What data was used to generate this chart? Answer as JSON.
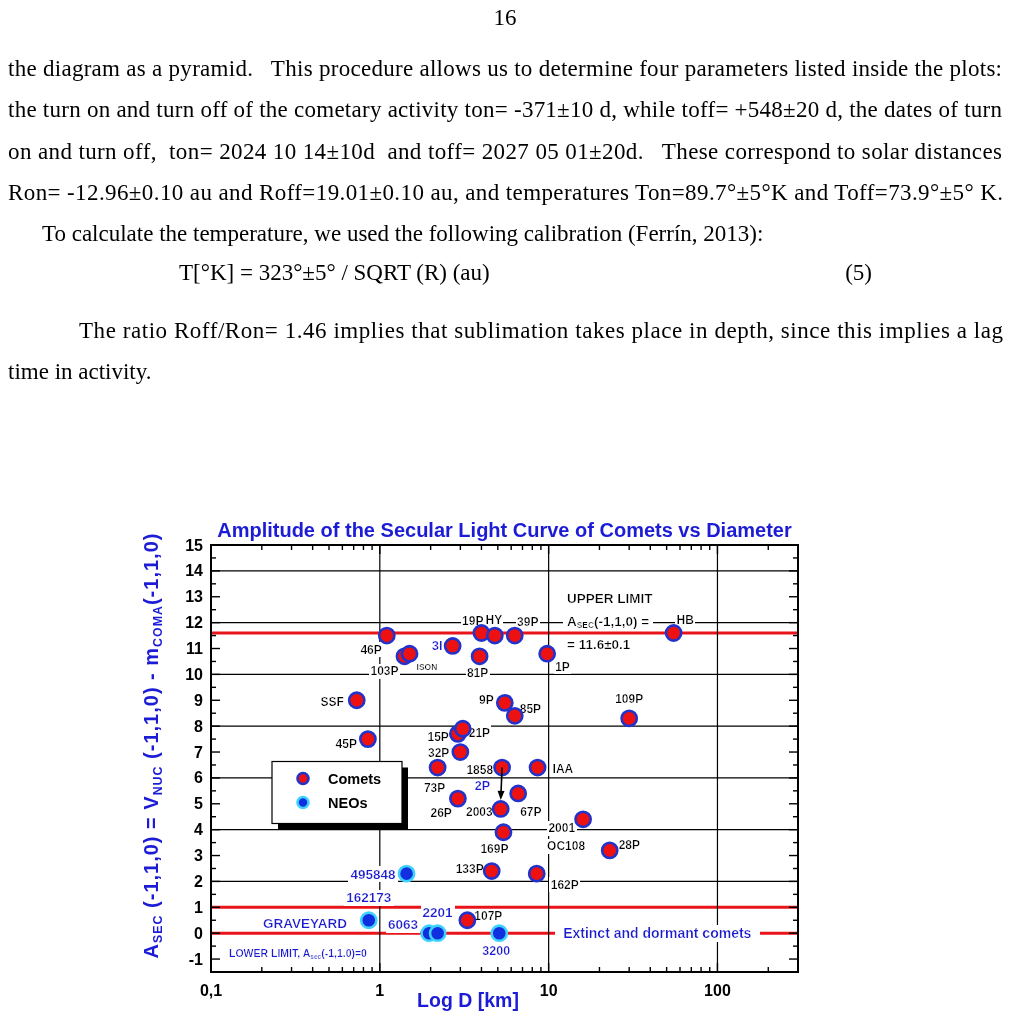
{
  "chart_data": {
    "type": "scatter",
    "title": "Amplitude of the Secular Light Curve of Comets vs Diameter",
    "xlabel": "Log D [km]",
    "ylabel": "A$_{SEC}$ (-1,1,0) = V$_{NUC}$ (-1,1,0) - m$_{COMA}$(-1,1,0)",
    "log": "x",
    "xlim": [
      0.1,
      300
    ],
    "ylim": [
      -1.5,
      15
    ],
    "xticks": [
      {
        "value": 0.1,
        "label": "0,1"
      },
      {
        "value": 0.2,
        "label": null
      },
      {
        "value": 0.3,
        "label": null
      },
      {
        "value": 0.4,
        "label": null
      },
      {
        "value": 0.5,
        "label": null
      },
      {
        "value": 0.6,
        "label": null
      },
      {
        "value": 0.7,
        "label": null
      },
      {
        "value": 0.8,
        "label": null
      },
      {
        "value": 0.9,
        "label": null
      },
      1,
      {
        "value": 2,
        "label": null
      },
      {
        "value": 3,
        "label": null
      },
      {
        "value": 4,
        "label": null
      },
      {
        "value": 5,
        "label": null
      },
      {
        "value": 6,
        "label": null
      },
      {
        "value": 7,
        "label": null
      },
      {
        "value": 8,
        "label": null
      },
      {
        "value": 9,
        "label": null
      },
      10,
      {
        "value": 20,
        "label": null
      },
      {
        "value": 30,
        "label": null
      },
      {
        "value": 40,
        "label": null
      },
      {
        "value": 50,
        "label": null
      },
      {
        "value": 60,
        "label": null
      },
      {
        "value": 70,
        "label": null
      },
      {
        "value": 80,
        "label": null
      },
      {
        "value": 90,
        "label": null
      },
      100,
      {
        "value": 200,
        "label": null
      }
    ],
    "yticks": [
      -1,
      {
        "value": -0.5,
        "label": null
      },
      0,
      {
        "value": 0.5,
        "label": null
      },
      1,
      {
        "value": 1.5,
        "label": null
      },
      2,
      {
        "value": 2.5,
        "label": null
      },
      3,
      {
        "value": 3.5,
        "label": null
      },
      4,
      {
        "value": 4.5,
        "label": null
      },
      5,
      {
        "value": 5.5,
        "label": null
      },
      6,
      {
        "value": 6.5,
        "label": null
      },
      7,
      {
        "value": 7.5,
        "label": null
      },
      8,
      {
        "value": 8.5,
        "label": null
      },
      9,
      {
        "value": 9.5,
        "label": null
      },
      10,
      {
        "value": 10.5,
        "label": null
      },
      11,
      {
        "value": 11.5,
        "label": null
      },
      12,
      {
        "value": 12.5,
        "label": null
      },
      13,
      {
        "value": 13.5,
        "label": null
      },
      14,
      {
        "value": 14.5,
        "label": null
      },
      15
    ],
    "marker": "circle",
    "legend": "left",
    "series": [
      {
        "name": "Comets",
        "color": "#ee1111",
        "x": [
          1.1,
          1.4,
          1.5,
          2.7,
          0.73,
          0.85,
          2.9,
          3.1,
          3.0,
          2.2,
          2.9,
          4.0,
          4.8,
          6.3,
          3.9,
          9.8,
          55,
          5.5,
          6.3,
          30,
          5.3,
          8.6,
          6.6,
          5.2,
          5.4,
          16,
          23,
          4.6,
          8.5,
          3.3
        ],
        "values": [
          11.5,
          10.7,
          10.8,
          11.1,
          9.0,
          7.5,
          7.7,
          7.9,
          7.0,
          6.4,
          5.2,
          11.6,
          11.5,
          11.5,
          10.7,
          10.8,
          11.6,
          8.9,
          8.4,
          8.3,
          6.4,
          6.4,
          5.4,
          4.8,
          3.9,
          4.4,
          3.2,
          2.4,
          2.3,
          0.5
        ]
      },
      {
        "name": "NEOs",
        "color": "#1030e0",
        "x": [
          1.44,
          0.86,
          1.96,
          2.2,
          5.1
        ],
        "values": [
          2.3,
          0.5,
          0,
          0,
          0
        ]
      }
    ],
    "ref_lines": [
      {
        "axis": "y",
        "value": 11.6,
        "color": "#e8141a"
      },
      {
        "axis": "y",
        "value": 1,
        "color": "#e8141a"
      },
      {
        "axis": "y",
        "value": 0,
        "color": "#e8141a"
      },
      {
        "axis": "y",
        "value": 14,
        "color": "#000000"
      },
      {
        "axis": "y",
        "value": 12,
        "color": "#000000"
      },
      {
        "axis": "y",
        "value": 10,
        "color": "#000000"
      },
      {
        "axis": "y",
        "value": 8,
        "color": "#000000"
      },
      {
        "axis": "y",
        "value": 6,
        "color": "#000000"
      },
      {
        "axis": "y",
        "value": 4,
        "color": "#000000"
      },
      {
        "axis": "y",
        "value": 2,
        "color": "#000000"
      },
      {
        "axis": "x",
        "value": 1,
        "color": "#000000"
      },
      {
        "axis": "x",
        "value": 10,
        "color": "#000000"
      },
      {
        "axis": "x",
        "value": 100,
        "color": "#000000"
      }
    ],
    "annotations": [
      "16",
      "the diagram as a pyramid.   This procedure allows us to determine four parameters listed inside the plots:",
      "the turn on and turn off of the cometary activity ton= -371±10 d, while toff= +548±20 d, the dates of turn",
      "on and turn off,  ton= 2024 10 14±10d  and toff= 2027 05 01±20d.   These correspond to solar distances",
      "Ron= -12.96±0.10 au and Roff=19.01±0.10 au, and temperatures Ton=89.7°±5°K and Toff=73.9°±5° K.",
      "To calculate the temperature, we used the following calibration (Ferrín, 2013):",
      "T[°K] = 323°±5° / SQRT (R) (au)",
      "(5)",
      "The ratio Roff/Ron= 1.46 implies that sublimation takes place in depth, since this implies a lag",
      "time in activity.",
      "2P",
      "GRAVEYARD",
      "LOWER LIMIT, A$_{sec}$(-1,1.0)=0",
      "UPPER LIMIT",
      "A$_{SEC}$(-1,1,0) =",
      "= 11.6±0.1",
      {
        "text": "46P",
        "x": 1.1,
        "y": 11.5
      },
      {
        "text": "103P",
        "x": 1.4,
        "y": 10.7
      },
      {
        "text": "ISON",
        "x": 1.5,
        "y": 10.8
      },
      {
        "text": "3I",
        "x": 2.7,
        "y": 11.1
      },
      {
        "text": "SSF",
        "x": 0.73,
        "y": 9.0
      },
      {
        "text": "45P",
        "x": 0.85,
        "y": 7.5
      },
      {
        "text": "15P",
        "x": 2.9,
        "y": 7.7
      },
      {
        "text": "21P",
        "x": 3.1,
        "y": 7.9
      },
      {
        "text": "32P",
        "x": 3.0,
        "y": 7.0
      },
      {
        "text": "73P",
        "x": 2.2,
        "y": 6.4
      },
      {
        "text": "26P",
        "x": 2.9,
        "y": 5.2
      },
      {
        "text": "19P",
        "x": 4.0,
        "y": 11.6
      },
      {
        "text": "HY",
        "x": 4.8,
        "y": 11.5
      },
      {
        "text": "39P",
        "x": 6.3,
        "y": 11.5
      },
      {
        "text": "81P",
        "x": 3.9,
        "y": 10.7
      },
      {
        "text": "1P",
        "x": 9.8,
        "y": 10.8
      },
      {
        "text": "HB",
        "x": 55,
        "y": 11.6
      },
      {
        "text": "9P",
        "x": 5.5,
        "y": 8.9
      },
      {
        "text": "85P",
        "x": 6.3,
        "y": 8.4
      },
      {
        "text": "109P",
        "x": 30,
        "y": 8.3
      },
      {
        "text": "1858",
        "x": 5.3,
        "y": 6.4
      },
      {
        "text": "IAA",
        "x": 8.6,
        "y": 6.4
      },
      {
        "text": "67P",
        "x": 6.6,
        "y": 5.4
      },
      {
        "text": "2003",
        "x": 5.2,
        "y": 4.8
      },
      {
        "text": "169P",
        "x": 5.4,
        "y": 3.9
      },
      {
        "text": "2001",
        "x": 16,
        "y": 4.4
      },
      {
        "text": "OC108",
        "x": 16,
        "y": 4.4
      },
      {
        "text": "28P",
        "x": 23,
        "y": 3.2
      },
      {
        "text": "133P",
        "x": 4.6,
        "y": 2.4
      },
      {
        "text": "162P",
        "x": 8.5,
        "y": 2.3
      },
      {
        "text": "107P",
        "x": 3.3,
        "y": 0.5
      },
      {
        "text": "495848",
        "x": 1.44,
        "y": 2.3
      },
      {
        "text": "162173",
        "x": 0.86,
        "y": 0.5
      },
      {
        "text": "6063",
        "x": 1.96,
        "y": 0
      },
      {
        "text": "2201",
        "x": 2.2,
        "y": 0
      },
      {
        "text": "3200",
        "x": 5.1,
        "y": 0
      },
      {
        "text": "Extinct and dormant comets",
        "x": 44,
        "y": 0
      }
    ]
  }
}
